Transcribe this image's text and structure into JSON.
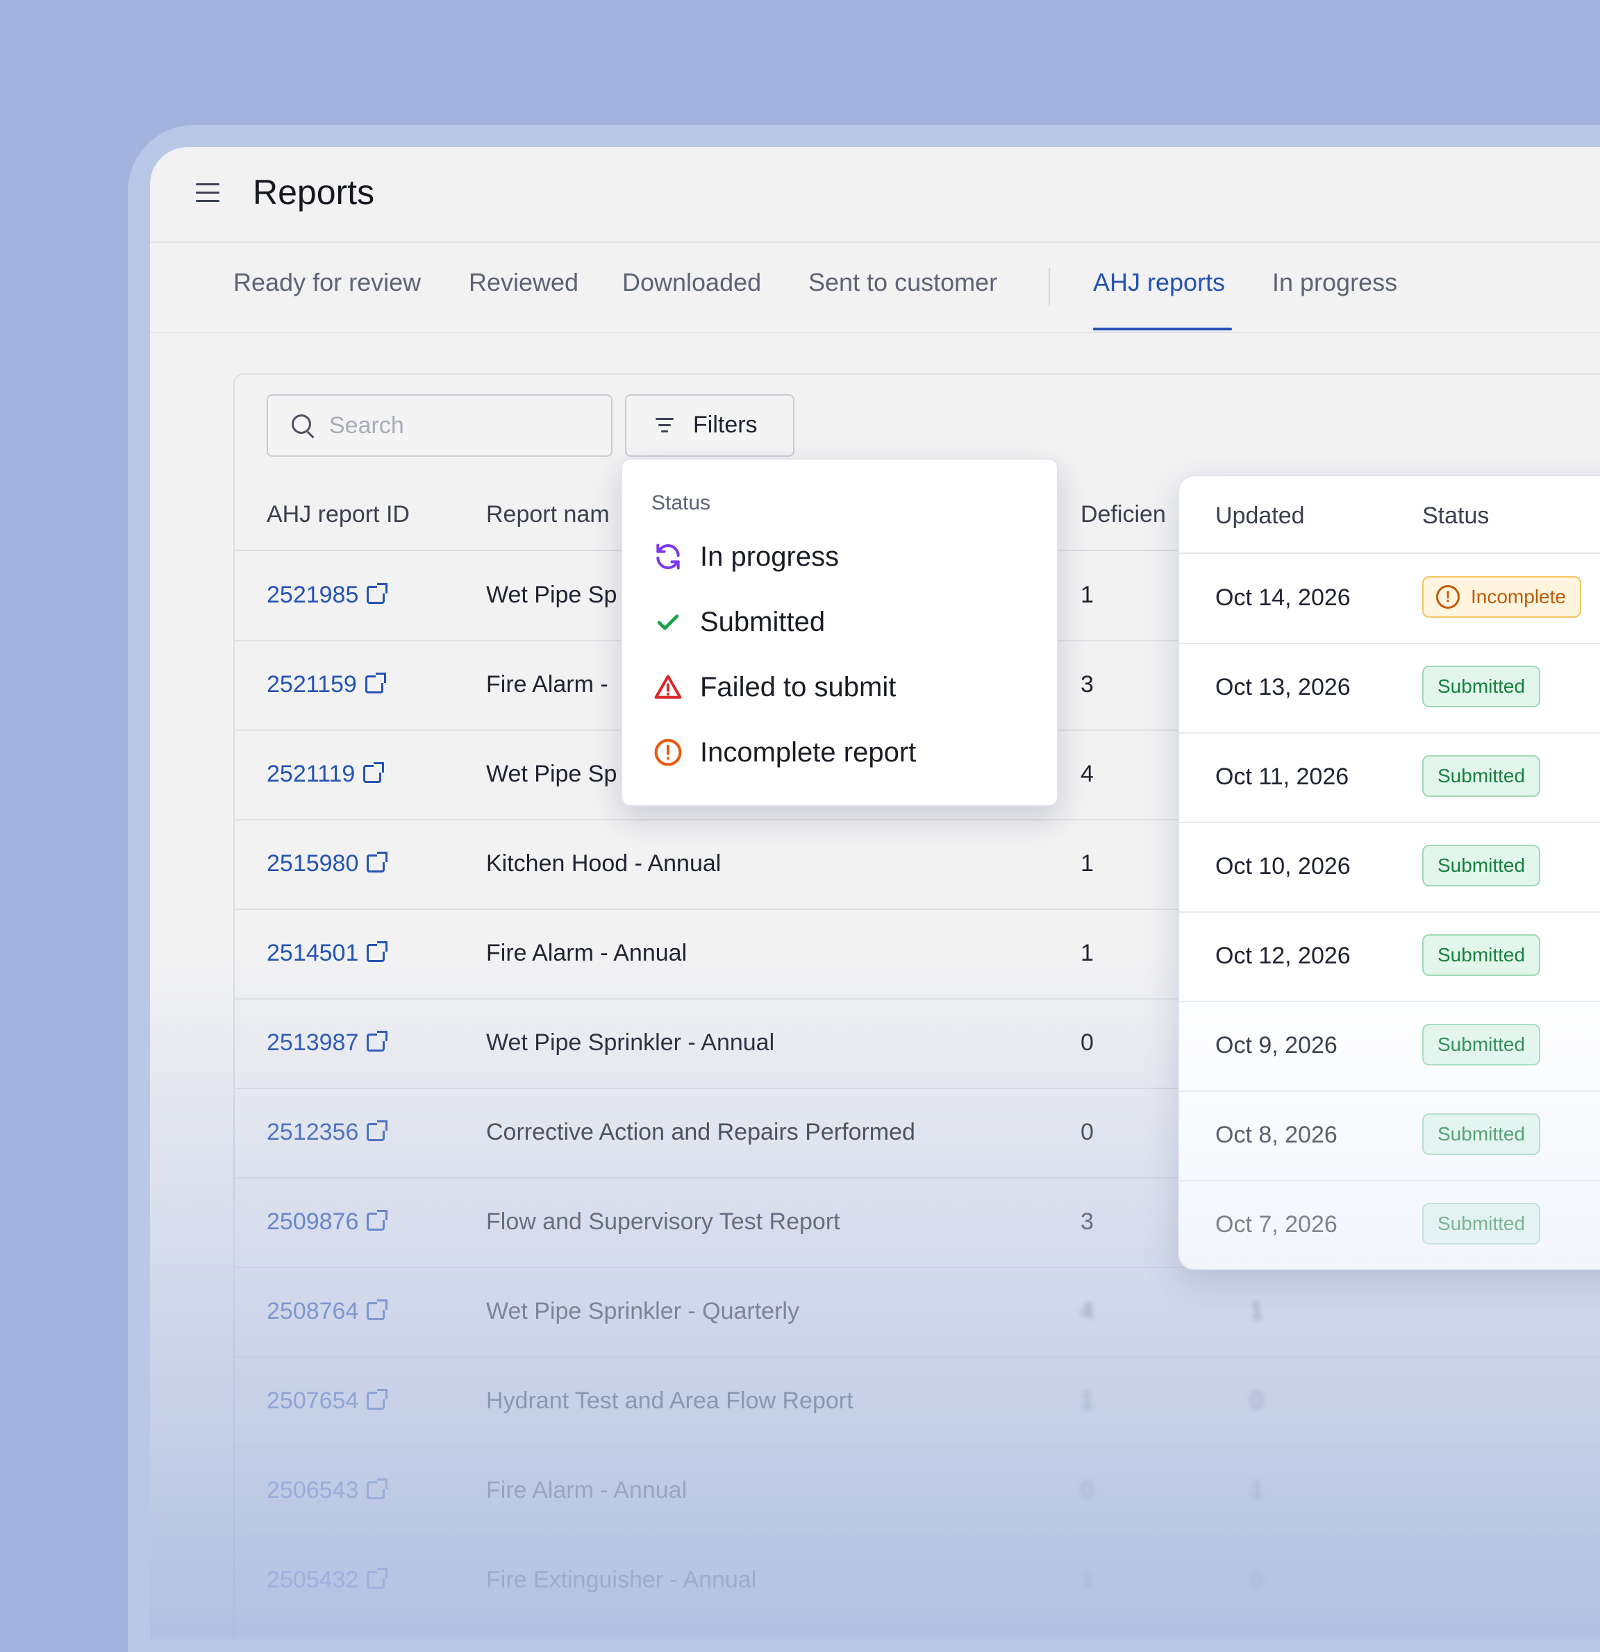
{
  "header": {
    "title": "Reports"
  },
  "tabs": [
    {
      "label": "Ready for review"
    },
    {
      "label": "Reviewed"
    },
    {
      "label": "Downloaded"
    },
    {
      "label": "Sent to customer"
    },
    {
      "label": "AHJ reports"
    },
    {
      "label": "In progress"
    }
  ],
  "active_tab": "AHJ reports",
  "toolbar": {
    "search_placeholder": "Search",
    "filters_label": "Filters"
  },
  "table": {
    "columns": [
      "AHJ report ID",
      "Report nam",
      "Deficien",
      "Updated",
      "Status"
    ],
    "rows": [
      {
        "id": "2521985",
        "name": "Wet Pipe Sp",
        "deficiencies": "1",
        "updated": "Oct 14, 2026",
        "status": "Incomplete"
      },
      {
        "id": "2521159",
        "name": "Fire Alarm -",
        "deficiencies": "3",
        "updated": "Oct 13, 2026",
        "status": "Submitted"
      },
      {
        "id": "2521119",
        "name": "Wet Pipe Sp",
        "deficiencies": "4",
        "updated": "Oct 11, 2026",
        "status": "Submitted"
      },
      {
        "id": "2515980",
        "name": "Kitchen Hood - Annual",
        "deficiencies": "1",
        "updated": "Oct 10, 2026",
        "status": "Submitted"
      },
      {
        "id": "2514501",
        "name": "Fire Alarm - Annual",
        "deficiencies": "1",
        "updated": "Oct 12, 2026",
        "status": "Submitted"
      },
      {
        "id": "2513987",
        "name": "Wet Pipe Sprinkler - Annual",
        "deficiencies": "0",
        "updated": "Oct 9, 2026",
        "status": "Submitted"
      },
      {
        "id": "2512356",
        "name": "Corrective Action and Repairs Performed",
        "deficiencies": "0",
        "updated": "Oct 8, 2026",
        "status": "Submitted"
      },
      {
        "id": "2509876",
        "name": "Flow and Supervisory Test Report",
        "deficiencies": "3",
        "updated": "Oct 7, 2026",
        "status": "Submitted"
      },
      {
        "id": "2508764",
        "name": "Wet Pipe Sprinkler - Quarterly",
        "deficiencies": "4",
        "extra": "1"
      },
      {
        "id": "2507654",
        "name": "Hydrant Test and Area Flow Report",
        "deficiencies": "1",
        "extra": "0"
      },
      {
        "id": "2506543",
        "name": "Fire Alarm - Annual",
        "deficiencies": "0",
        "extra": "1"
      },
      {
        "id": "2505432",
        "name": "Fire Extinguisher - Annual",
        "deficiencies": "1",
        "extra": "0"
      }
    ]
  },
  "filter_dropdown": {
    "section_title": "Status",
    "options": [
      {
        "label": "In progress",
        "icon": "refresh-icon",
        "color": "#7c3aed"
      },
      {
        "label": "Submitted",
        "icon": "check-icon",
        "color": "#16a34a"
      },
      {
        "label": "Failed to submit",
        "icon": "warning-triangle-icon",
        "color": "#dc2626"
      },
      {
        "label": "Incomplete report",
        "icon": "alert-circle-icon",
        "color": "#ea580c"
      }
    ]
  },
  "colors": {
    "background": "#a2b3dd",
    "accent": "#2453b4",
    "submitted": "#15803d",
    "incomplete": "#c05a06"
  }
}
